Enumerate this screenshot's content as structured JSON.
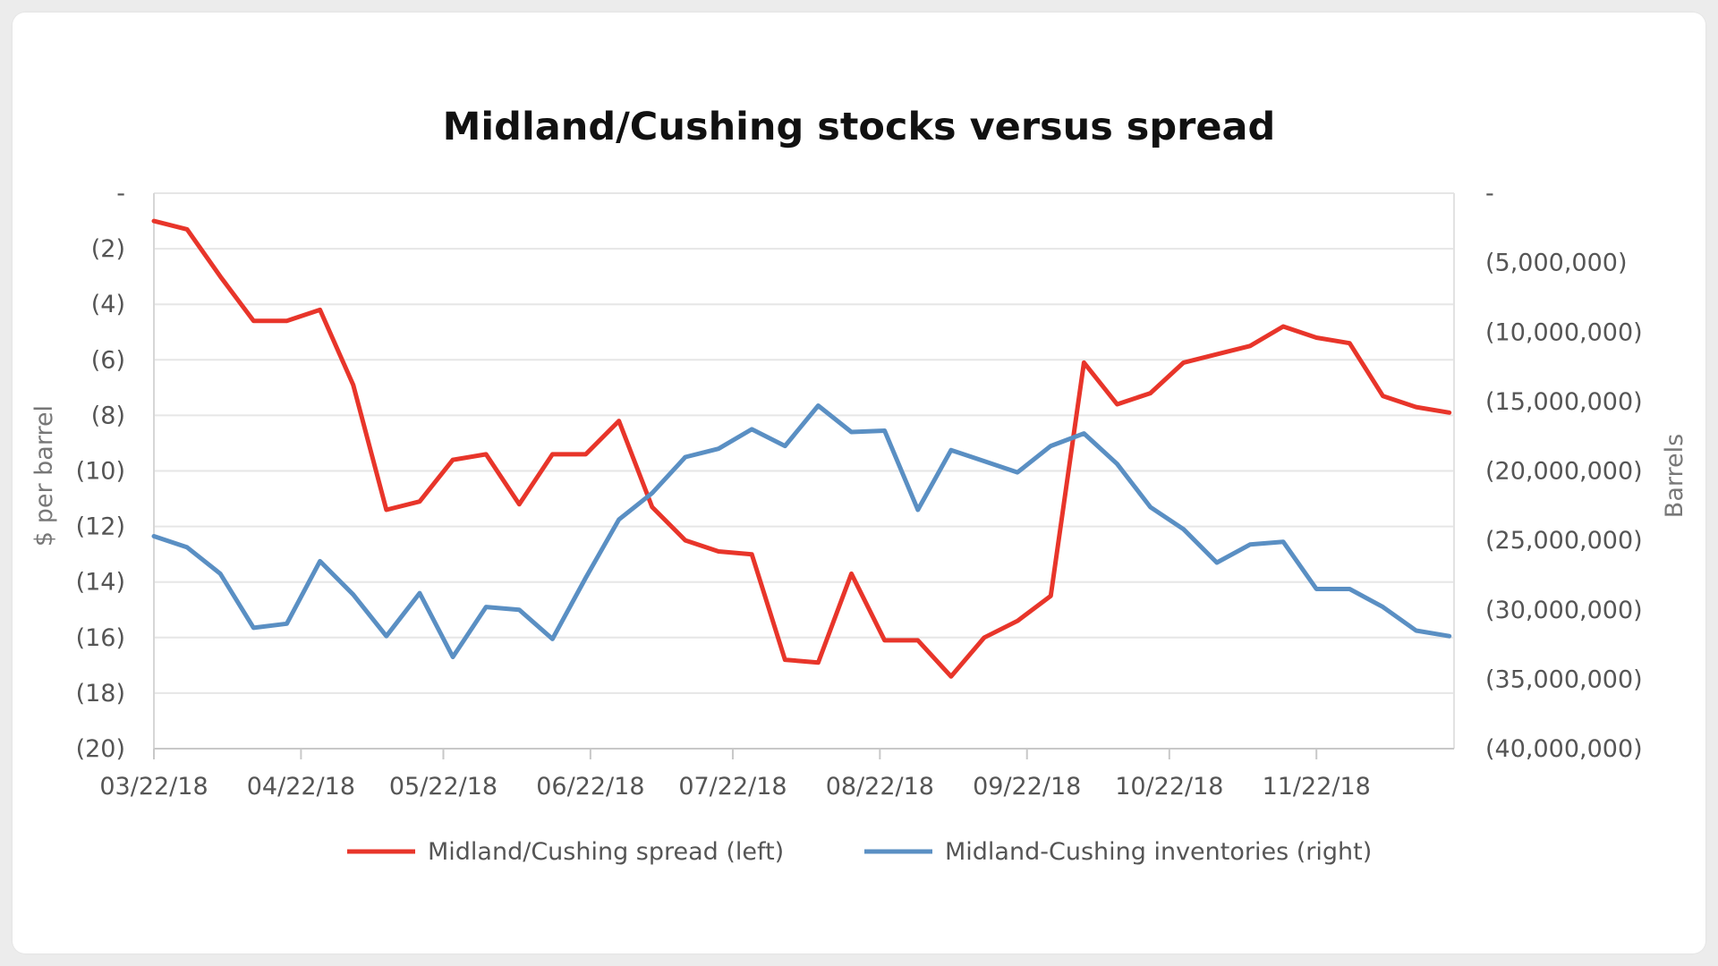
{
  "chart_data": {
    "type": "line",
    "title": "Midland/Cushing stocks versus spread",
    "y_left": {
      "label": "$ per barrel",
      "range": [
        -20,
        0
      ],
      "tick_values": [
        0,
        -2,
        -4,
        -6,
        -8,
        -10,
        -12,
        -14,
        -16,
        -18,
        -20
      ],
      "tick_labels": [
        "-",
        "(2)",
        "(4)",
        "(6)",
        "(8)",
        "(10)",
        "(12)",
        "(14)",
        "(16)",
        "(18)",
        "(20)"
      ]
    },
    "y_right": {
      "label": "Barrels",
      "range": [
        -40000000,
        0
      ],
      "tick_values": [
        0,
        -5000000,
        -10000000,
        -15000000,
        -20000000,
        -25000000,
        -30000000,
        -35000000,
        -40000000
      ],
      "tick_labels": [
        "-",
        "(5,000,000)",
        "(10,000,000)",
        "(15,000,000)",
        "(20,000,000)",
        "(25,000,000)",
        "(30,000,000)",
        "(35,000,000)",
        "(40,000,000)"
      ]
    },
    "x_axis": {
      "start": "03/22/18",
      "end": "12/21/18",
      "tick_dates": [
        "2018-03-22",
        "2018-04-22",
        "2018-05-22",
        "2018-06-22",
        "2018-07-22",
        "2018-08-22",
        "2018-09-22",
        "2018-10-22",
        "2018-11-22"
      ],
      "tick_labels": [
        "03/22/18",
        "04/22/18",
        "05/22/18",
        "06/22/18",
        "07/22/18",
        "08/22/18",
        "09/22/18",
        "10/22/18",
        "11/22/18"
      ]
    },
    "grid": "horizontal",
    "legend_position": "bottom",
    "series": [
      {
        "name": "Midland/Cushing spread (left)",
        "axis": "left",
        "color": "#e8352a",
        "x": [
          "2018-03-22",
          "2018-03-29",
          "2018-04-05",
          "2018-04-12",
          "2018-04-19",
          "2018-04-26",
          "2018-05-03",
          "2018-05-10",
          "2018-05-17",
          "2018-05-24",
          "2018-05-31",
          "2018-06-07",
          "2018-06-14",
          "2018-06-21",
          "2018-06-28",
          "2018-07-05",
          "2018-07-12",
          "2018-07-19",
          "2018-07-26",
          "2018-08-02",
          "2018-08-09",
          "2018-08-16",
          "2018-08-23",
          "2018-08-30",
          "2018-09-06",
          "2018-09-13",
          "2018-09-20",
          "2018-09-27",
          "2018-10-04",
          "2018-10-11",
          "2018-10-18",
          "2018-10-25",
          "2018-11-01",
          "2018-11-08",
          "2018-11-15",
          "2018-11-22",
          "2018-11-29",
          "2018-12-06",
          "2018-12-13",
          "2018-12-20"
        ],
        "values": [
          -1.0,
          -1.3,
          -3.0,
          -4.6,
          -4.6,
          -4.2,
          -6.9,
          -11.4,
          -11.1,
          -9.6,
          -9.4,
          -11.2,
          -9.4,
          -9.4,
          -8.2,
          -11.3,
          -12.5,
          -12.9,
          -13.0,
          -16.8,
          -16.9,
          -13.7,
          -16.1,
          -16.1,
          -17.4,
          -16.0,
          -15.4,
          -14.5,
          -6.1,
          -7.6,
          -7.2,
          -6.1,
          -5.8,
          -5.5,
          -4.8,
          -5.2,
          -5.4,
          -7.3,
          -7.7,
          -7.9
        ]
      },
      {
        "name": "Midland-Cushing inventories (right)",
        "axis": "right",
        "color": "#5a8fc3",
        "x": [
          "2018-03-22",
          "2018-03-29",
          "2018-04-05",
          "2018-04-12",
          "2018-04-19",
          "2018-04-26",
          "2018-05-03",
          "2018-05-10",
          "2018-05-17",
          "2018-05-24",
          "2018-05-31",
          "2018-06-07",
          "2018-06-14",
          "2018-06-21",
          "2018-06-28",
          "2018-07-05",
          "2018-07-12",
          "2018-07-19",
          "2018-07-26",
          "2018-08-02",
          "2018-08-09",
          "2018-08-16",
          "2018-08-23",
          "2018-08-30",
          "2018-09-06",
          "2018-09-13",
          "2018-09-20",
          "2018-09-27",
          "2018-10-04",
          "2018-10-11",
          "2018-10-18",
          "2018-10-25",
          "2018-11-01",
          "2018-11-08",
          "2018-11-15",
          "2018-11-22",
          "2018-11-29",
          "2018-12-06",
          "2018-12-13",
          "2018-12-20"
        ],
        "values": [
          -24700000,
          -25500000,
          -27400000,
          -31300000,
          -31000000,
          -26500000,
          -28900000,
          -31900000,
          -28800000,
          -33400000,
          -29800000,
          -30000000,
          -32100000,
          -27700000,
          -23500000,
          -21600000,
          -19000000,
          -18400000,
          -17000000,
          -18200000,
          -15300000,
          -17200000,
          -17100000,
          -22800000,
          -18500000,
          -19300000,
          -20100000,
          -18200000,
          -17300000,
          -19500000,
          -22600000,
          -24200000,
          -26600000,
          -25300000,
          -25100000,
          -28500000,
          -28500000,
          -29800000,
          -31500000,
          -31900000
        ]
      }
    ]
  }
}
